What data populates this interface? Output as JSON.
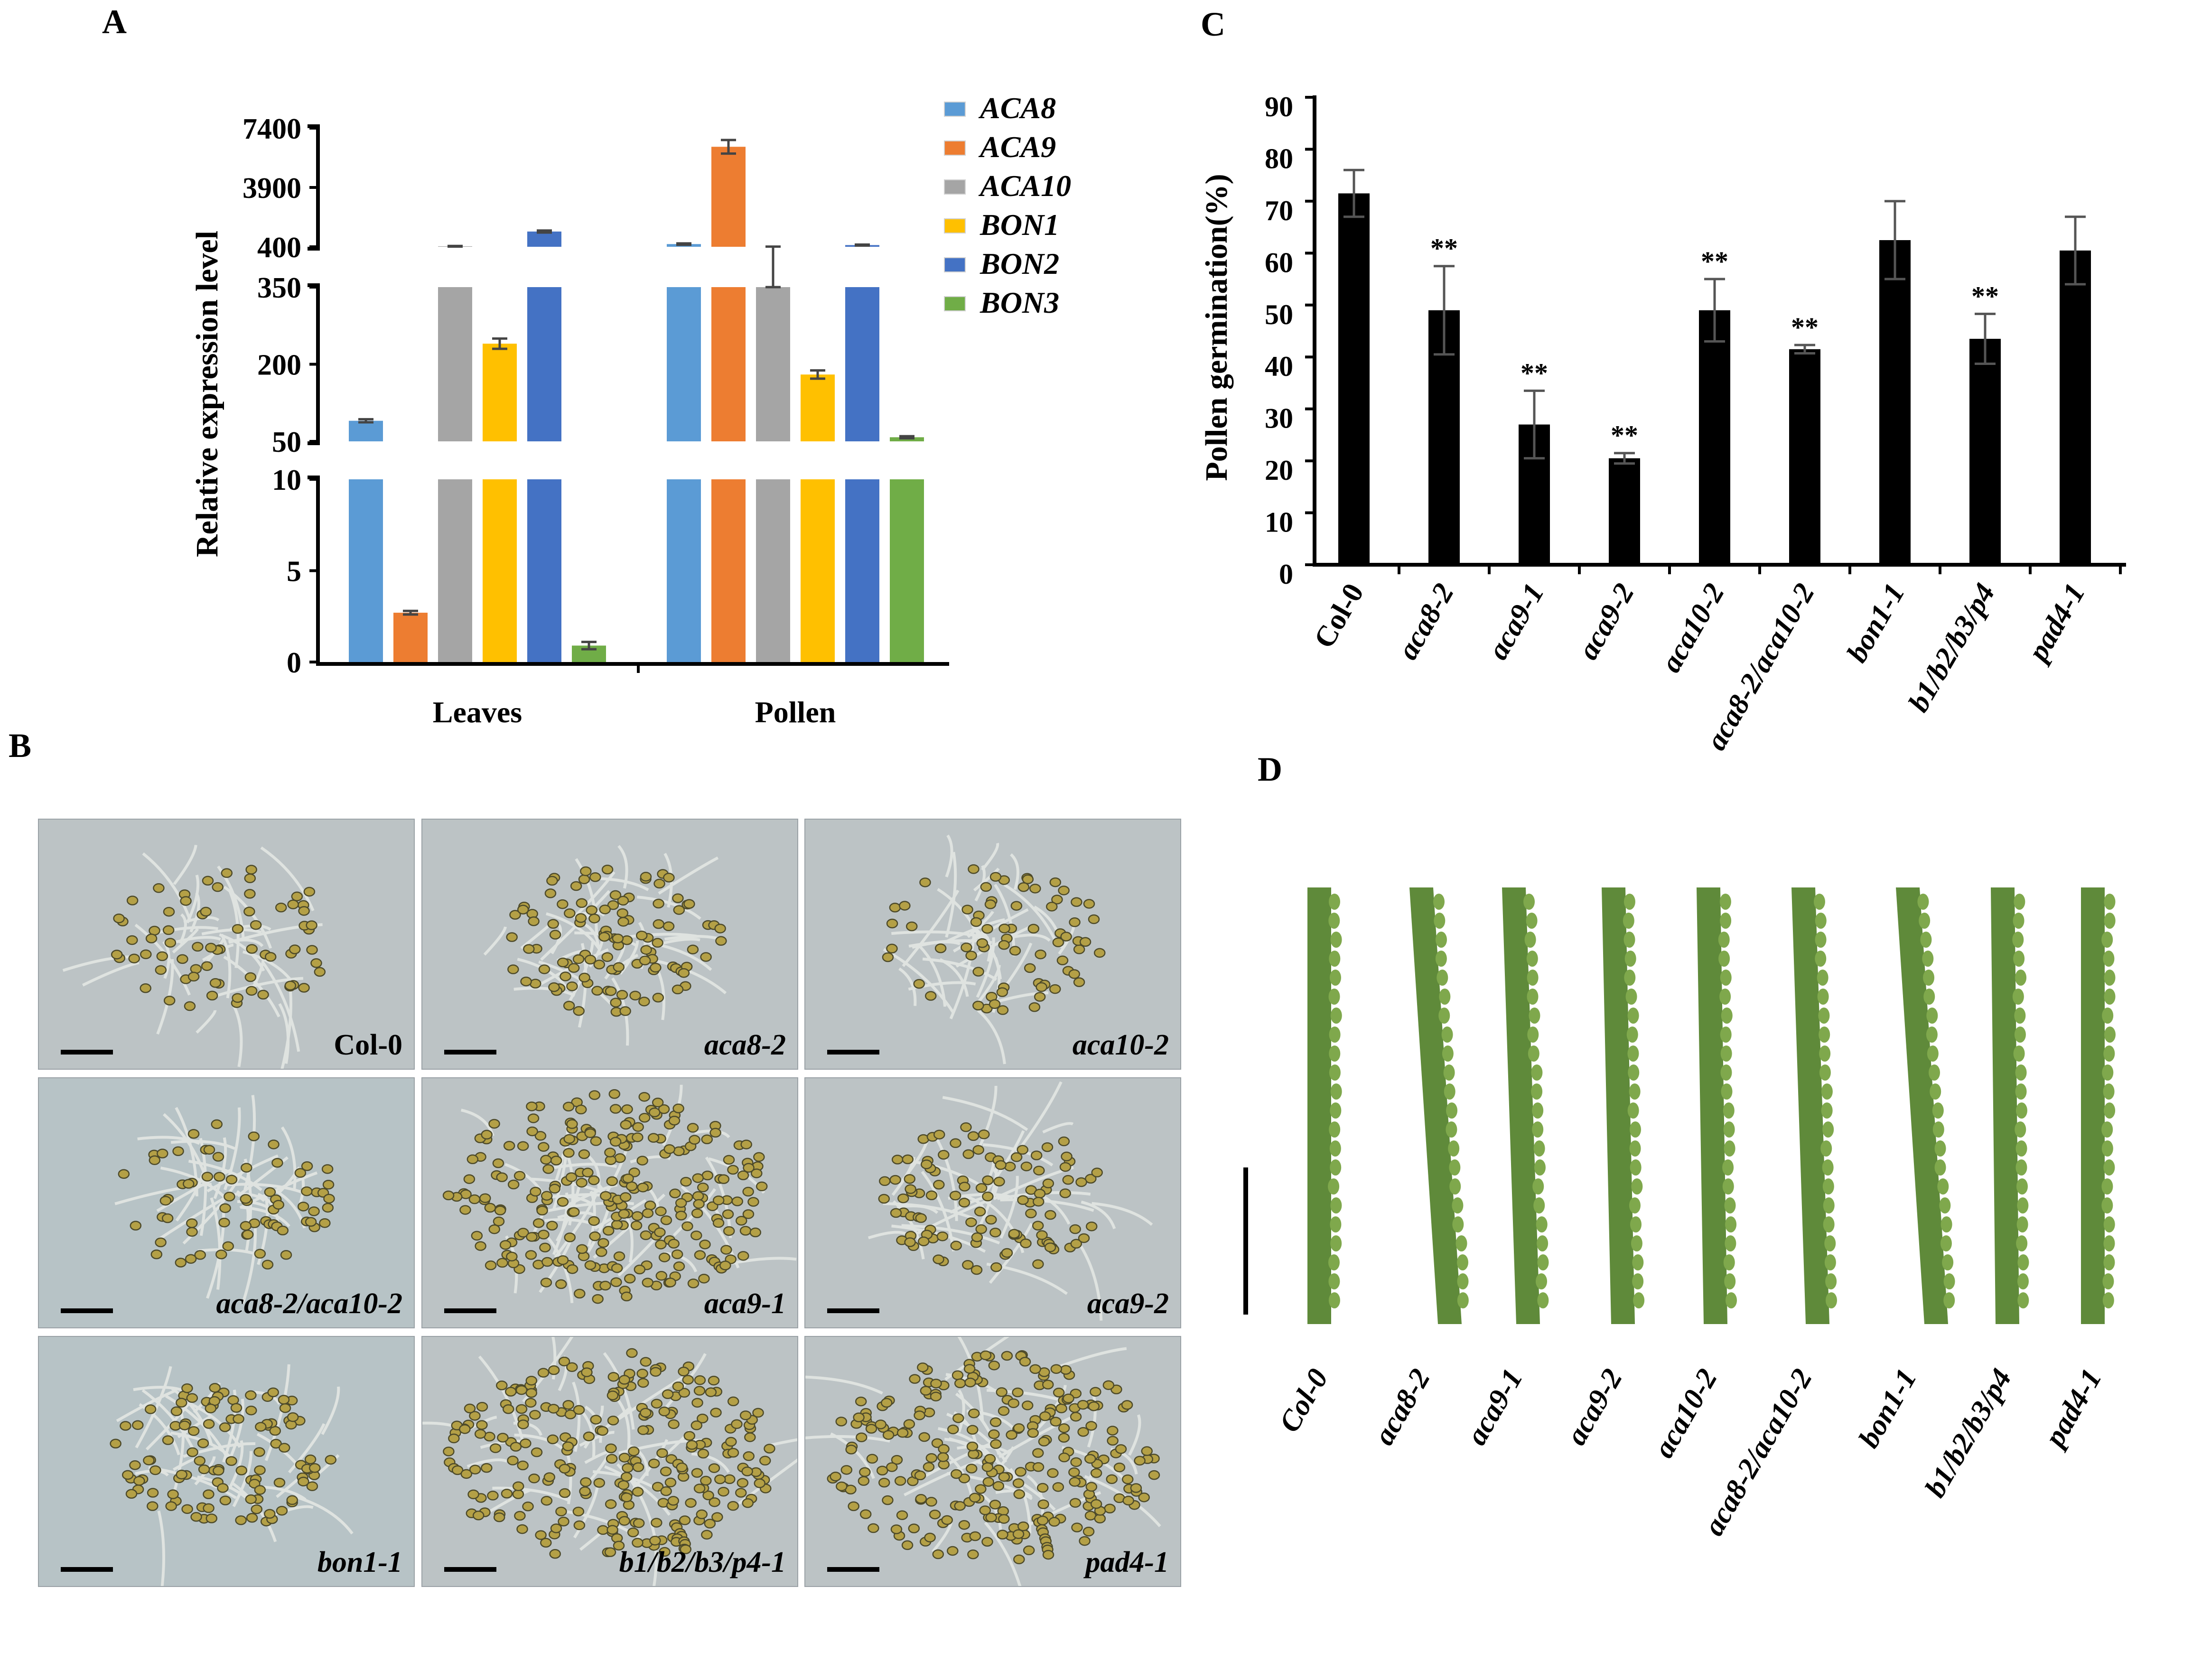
{
  "panels": {
    "a": "A",
    "b": "B",
    "c": "C",
    "d": "D"
  },
  "chart_data": [
    {
      "type": "bar",
      "title": "",
      "ylabel": "Relative expression level",
      "xlabel": "",
      "categories": [
        "Leaves",
        "Pollen"
      ],
      "y_axis_broken": true,
      "y_segments": [
        {
          "range": [
            0,
            10
          ],
          "ticks": [
            "0",
            "5",
            "10"
          ]
        },
        {
          "range": [
            50,
            350
          ],
          "ticks": [
            "50",
            "200",
            "350"
          ]
        },
        {
          "range": [
            400,
            7400
          ],
          "ticks": [
            "400",
            "3900",
            "7400"
          ]
        }
      ],
      "legend_position": "top-right",
      "series": [
        {
          "name": "ACA8",
          "color": "#5b9bd5",
          "values": [
            90,
            560
          ],
          "errors": [
            3,
            40
          ]
        },
        {
          "name": "ACA9",
          "color": "#ed7d31",
          "values": [
            2.7,
            6300
          ],
          "errors": [
            0.1,
            400
          ]
        },
        {
          "name": "ACA10",
          "color": "#a5a5a5",
          "values": [
            430,
            400
          ],
          "errors": [
            20,
            10
          ]
        },
        {
          "name": "BON1",
          "color": "#ffc000",
          "values": [
            240,
            180
          ],
          "errors": [
            10,
            8
          ]
        },
        {
          "name": "BON2",
          "color": "#4472c4",
          "values": [
            1300,
            500
          ],
          "errors": [
            60,
            30
          ]
        },
        {
          "name": "BON3",
          "color": "#70ad47",
          "values": [
            0.9,
            58
          ],
          "errors": [
            0.2,
            2
          ]
        }
      ]
    },
    {
      "type": "bar",
      "title": "",
      "ylabel": "Pollen germination(%)",
      "xlabel": "",
      "ylim": [
        0,
        90
      ],
      "yticks": [
        "0",
        "10",
        "20",
        "30",
        "40",
        "50",
        "60",
        "70",
        "80",
        "90"
      ],
      "categories": [
        "Col-0",
        "aca8-2",
        "aca9-1",
        "aca9-2",
        "aca10-2",
        "aca8-2/aca10-2",
        "bon1-1",
        "b1/b2/b3/p4",
        "pad4-1"
      ],
      "values": [
        71.5,
        49,
        27,
        20.5,
        49,
        41.5,
        62.5,
        43.5,
        60.5
      ],
      "errors": [
        4.5,
        8.5,
        6.5,
        1,
        6,
        0.8,
        7.5,
        4.8,
        6.5
      ],
      "significance": [
        "",
        "**",
        "**",
        "**",
        "**",
        "**",
        "",
        "**",
        ""
      ],
      "bar_color": "#000000"
    }
  ],
  "micrographs": [
    {
      "label": "Col-0",
      "density": "sparse"
    },
    {
      "label": "aca8-2",
      "density": "medium"
    },
    {
      "label": "aca10-2",
      "density": "sparse"
    },
    {
      "label": "aca8-2/aca10-2",
      "density": "sparse"
    },
    {
      "label": "aca9-1",
      "density": "dense"
    },
    {
      "label": "aca9-2",
      "density": "medium"
    },
    {
      "label": "bon1-1",
      "density": "medium"
    },
    {
      "label": "b1/b2/b3/p4-1",
      "density": "dense"
    },
    {
      "label": "pad4-1",
      "density": "dense"
    }
  ],
  "siliques": [
    "Col-0",
    "aca8-2",
    "aca9-1",
    "aca9-2",
    "aca10-2",
    "aca8-2/aca10-2",
    "bon1-1",
    "b1/b2/b3/p4",
    "pad4-1"
  ]
}
